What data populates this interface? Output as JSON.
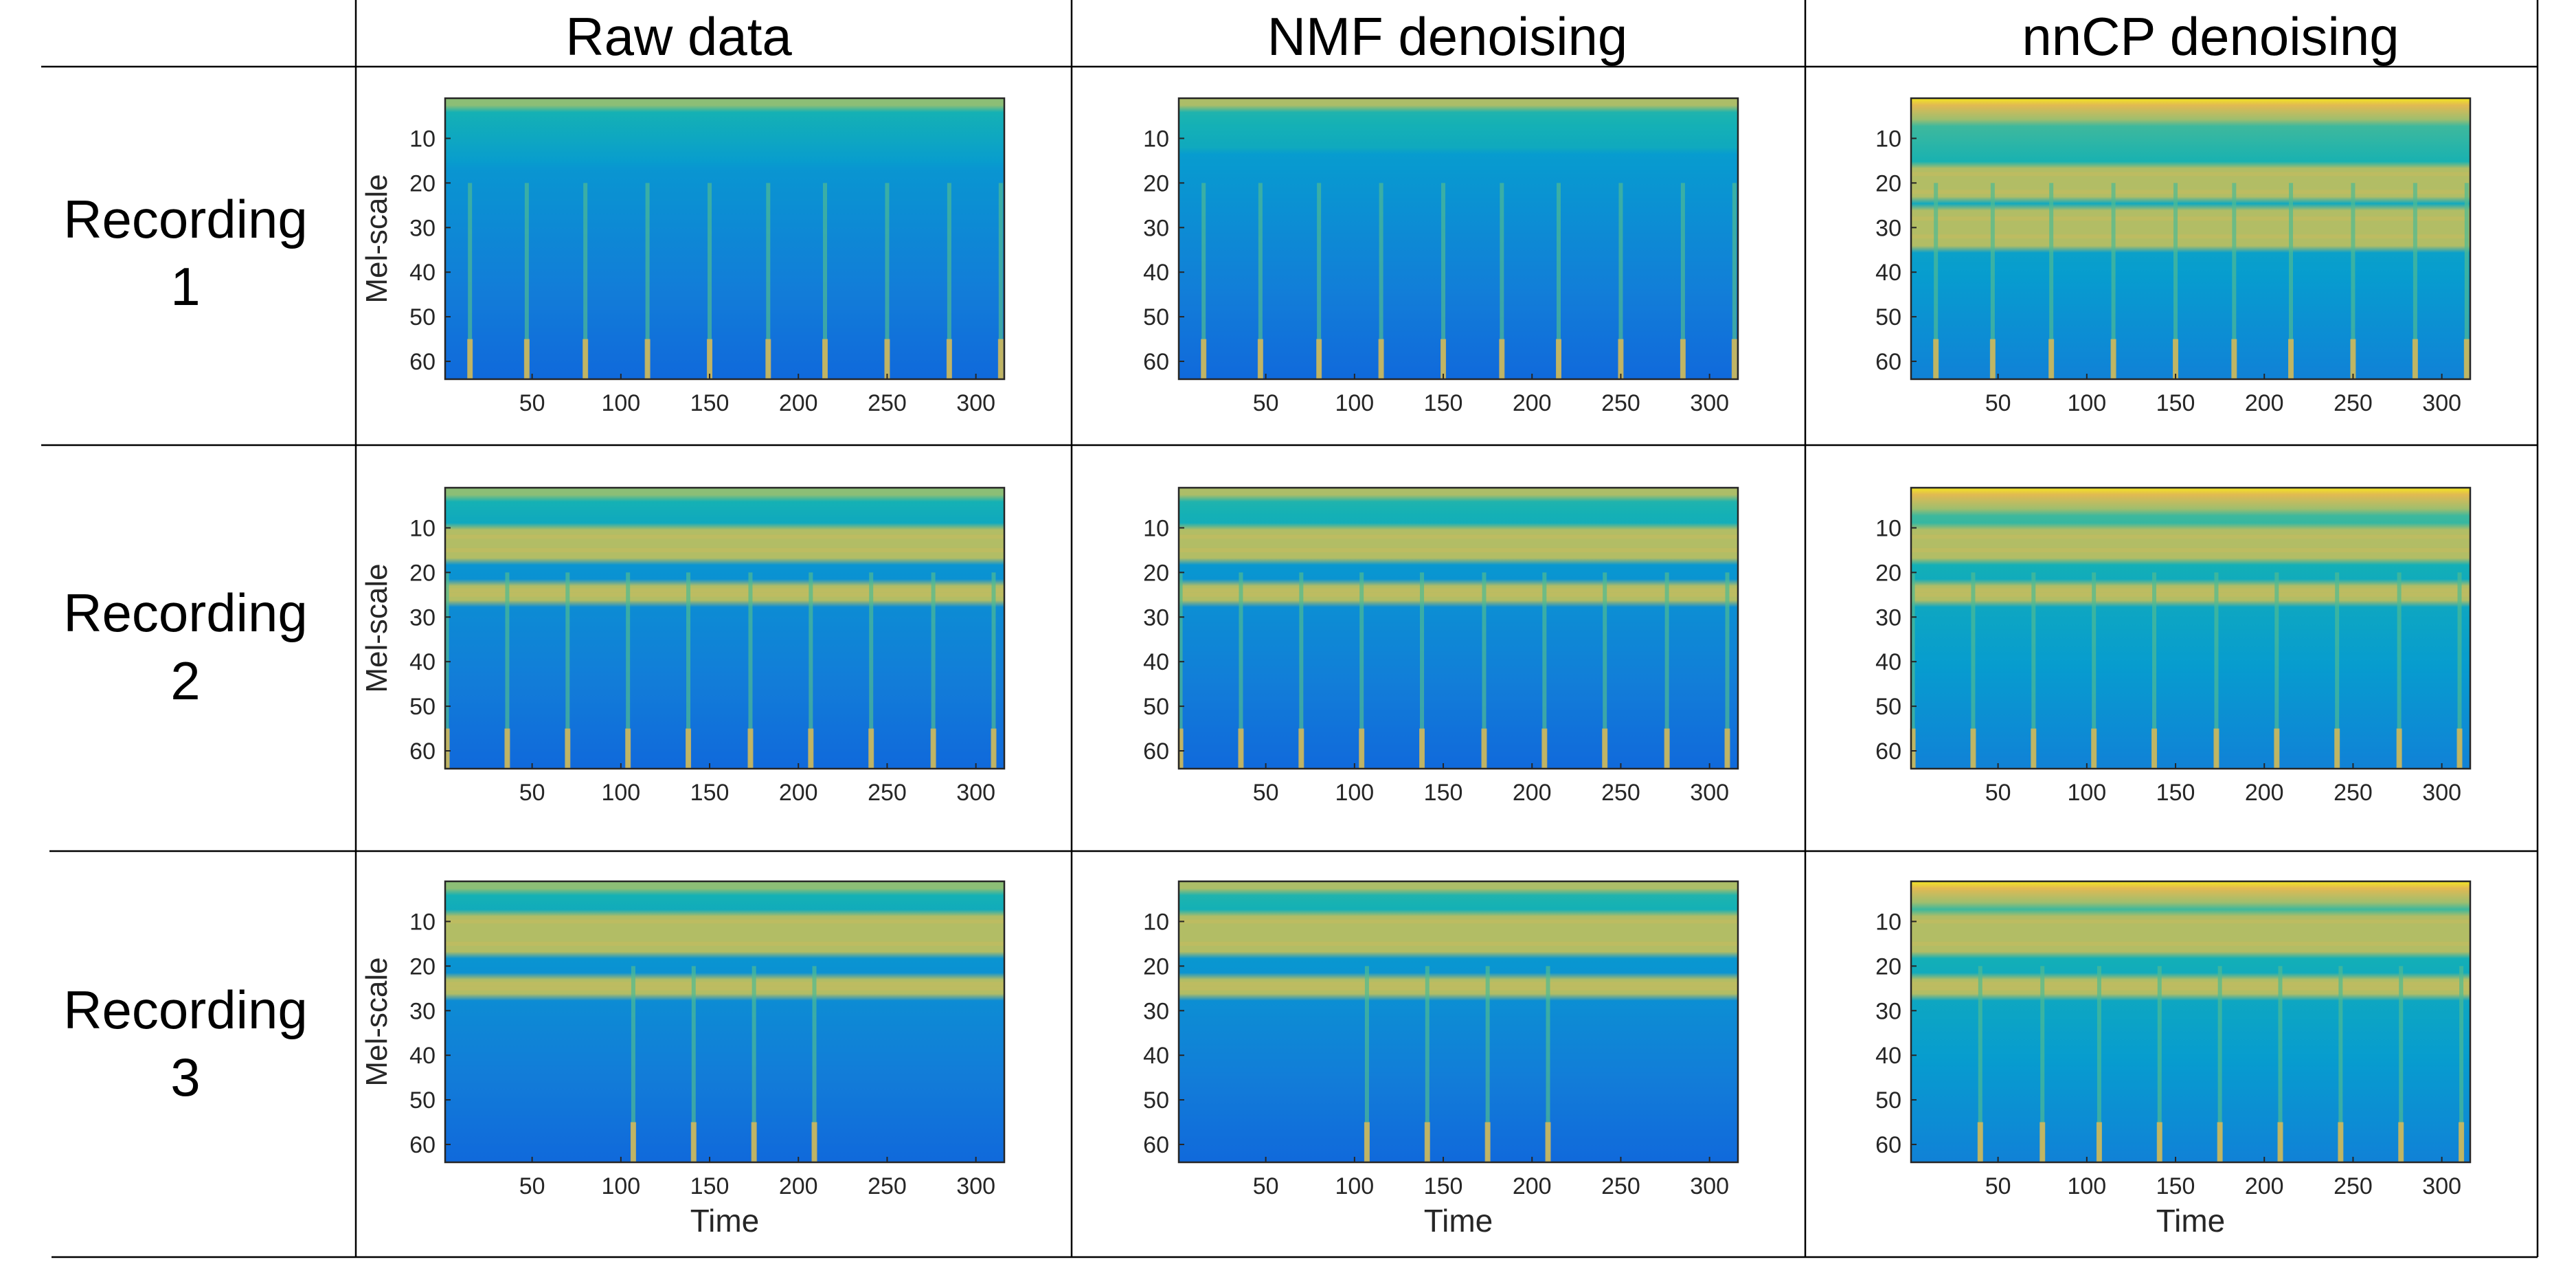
{
  "column_headers": [
    "Raw data",
    "NMF denoising",
    "nnCP denoising"
  ],
  "row_headers": [
    {
      "line1": "Recording",
      "line2": "1"
    },
    {
      "line1": "Recording",
      "line2": "2"
    },
    {
      "line1": "Recording",
      "line2": "3"
    }
  ],
  "colors": {
    "grid_line": "#000000",
    "colormap": "parula",
    "axes_frame": "#262626"
  },
  "chart_data": [
    {
      "type": "heatmap",
      "recording": "1",
      "method": "Raw data",
      "ylabel": "Mel-scale",
      "xlabel": "",
      "xlim": [
        1,
        316
      ],
      "ylim": [
        1,
        64
      ],
      "y_reversed": true,
      "xticks": [
        50,
        100,
        150,
        200,
        250,
        300
      ],
      "yticks": [
        10,
        20,
        30,
        40,
        50,
        60
      ],
      "pulse_x": [
        15,
        47,
        80,
        115,
        150,
        183,
        215,
        250,
        285,
        314
      ],
      "bands_y": []
    },
    {
      "type": "heatmap",
      "recording": "1",
      "method": "NMF denoising",
      "ylabel": "",
      "xlabel": "",
      "xlim": [
        1,
        316
      ],
      "ylim": [
        1,
        64
      ],
      "y_reversed": true,
      "xticks": [
        50,
        100,
        150,
        200,
        250,
        300
      ],
      "yticks": [
        10,
        20,
        30,
        40,
        50,
        60
      ],
      "pulse_x": [
        15,
        47,
        80,
        115,
        150,
        183,
        215,
        250,
        285,
        314
      ],
      "bands_y": []
    },
    {
      "type": "heatmap",
      "recording": "1",
      "method": "nnCP denoising",
      "ylabel": "",
      "xlabel": "",
      "xlim": [
        1,
        316
      ],
      "ylim": [
        1,
        64
      ],
      "y_reversed": true,
      "xticks": [
        50,
        100,
        150,
        200,
        250,
        300
      ],
      "yticks": [
        10,
        20,
        30,
        40,
        50,
        60
      ],
      "pulse_x": [
        15,
        47,
        80,
        115,
        150,
        183,
        215,
        250,
        285,
        314
      ],
      "bands_y": [
        18,
        22,
        28,
        32
      ]
    },
    {
      "type": "heatmap",
      "recording": "2",
      "method": "Raw data",
      "ylabel": "Mel-scale",
      "xlabel": "",
      "xlim": [
        1,
        316
      ],
      "ylim": [
        1,
        64
      ],
      "y_reversed": true,
      "xticks": [
        50,
        100,
        150,
        200,
        250,
        300
      ],
      "yticks": [
        10,
        20,
        30,
        40,
        50,
        60
      ],
      "pulse_x": [
        2,
        36,
        70,
        104,
        138,
        173,
        207,
        241,
        276,
        310
      ],
      "bands_y": [
        12,
        15,
        24,
        25
      ]
    },
    {
      "type": "heatmap",
      "recording": "2",
      "method": "NMF denoising",
      "ylabel": "",
      "xlabel": "",
      "xlim": [
        1,
        316
      ],
      "ylim": [
        1,
        64
      ],
      "y_reversed": true,
      "xticks": [
        50,
        100,
        150,
        200,
        250,
        300
      ],
      "yticks": [
        10,
        20,
        30,
        40,
        50,
        60
      ],
      "pulse_x": [
        2,
        36,
        70,
        104,
        138,
        173,
        207,
        241,
        276,
        310
      ],
      "bands_y": [
        12,
        15,
        24,
        25
      ]
    },
    {
      "type": "heatmap",
      "recording": "2",
      "method": "nnCP denoising",
      "ylabel": "",
      "xlabel": "",
      "xlim": [
        1,
        316
      ],
      "ylim": [
        1,
        64
      ],
      "y_reversed": true,
      "xticks": [
        50,
        100,
        150,
        200,
        250,
        300
      ],
      "yticks": [
        10,
        20,
        30,
        40,
        50,
        60
      ],
      "pulse_x": [
        2,
        36,
        70,
        104,
        138,
        173,
        207,
        241,
        276,
        310
      ],
      "bands_y": [
        12,
        15,
        24,
        25
      ]
    },
    {
      "type": "heatmap",
      "recording": "3",
      "method": "Raw data",
      "ylabel": "Mel-scale",
      "xlabel": "Time",
      "xlim": [
        1,
        316
      ],
      "ylim": [
        1,
        64
      ],
      "y_reversed": true,
      "xticks": [
        50,
        100,
        150,
        200,
        250,
        300
      ],
      "yticks": [
        10,
        20,
        30,
        40,
        50,
        60
      ],
      "pulse_x": [
        107,
        141,
        175,
        209
      ],
      "bands_y": [
        10,
        15,
        24,
        25
      ]
    },
    {
      "type": "heatmap",
      "recording": "3",
      "method": "NMF denoising",
      "ylabel": "",
      "xlabel": "Time",
      "xlim": [
        1,
        316
      ],
      "ylim": [
        1,
        64
      ],
      "y_reversed": true,
      "xticks": [
        50,
        100,
        150,
        200,
        250,
        300
      ],
      "yticks": [
        10,
        20,
        30,
        40,
        50,
        60
      ],
      "pulse_x": [
        107,
        141,
        175,
        209
      ],
      "bands_y": [
        10,
        15,
        24,
        25
      ]
    },
    {
      "type": "heatmap",
      "recording": "3",
      "method": "nnCP denoising",
      "ylabel": "",
      "xlabel": "Time",
      "xlim": [
        1,
        316
      ],
      "ylim": [
        1,
        64
      ],
      "y_reversed": true,
      "xticks": [
        50,
        100,
        150,
        200,
        250,
        300
      ],
      "yticks": [
        10,
        20,
        30,
        40,
        50,
        60
      ],
      "pulse_x": [
        40,
        75,
        107,
        141,
        175,
        209,
        243,
        277,
        311
      ],
      "bands_y": [
        10,
        15,
        24,
        25
      ]
    }
  ]
}
